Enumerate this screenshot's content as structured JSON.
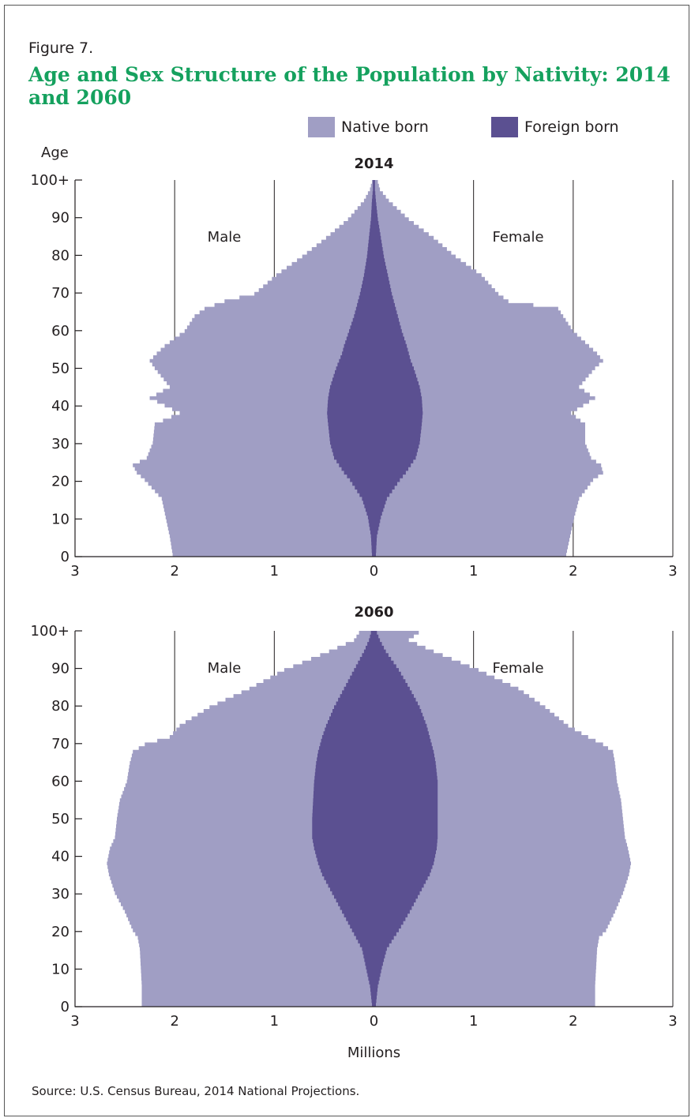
{
  "figure_label": "Figure 7.",
  "title": "Age and Sex Structure of the Population by Nativity: 2014 and 2060",
  "source": "Source: U.S. Census Bureau, 2014 National Projections.",
  "colors": {
    "native": "#a09ec4",
    "foreign": "#5b5091",
    "title": "#15a15e",
    "axis": "#231f20"
  },
  "chart_data": {
    "type": "population-pyramid",
    "legend": [
      {
        "name": "Native born",
        "color": "#a09ec4"
      },
      {
        "name": "Foreign born",
        "color": "#5b5091"
      }
    ],
    "y_axis_title": "Age",
    "x_label": "Millions",
    "x_ticks": [
      "3",
      "2",
      "1",
      "0",
      "1",
      "2",
      "3"
    ],
    "y_ticks": [
      "0",
      "10",
      "20",
      "30",
      "40",
      "50",
      "60",
      "70",
      "80",
      "90",
      "100+"
    ],
    "male_label": "Male",
    "female_label": "Female",
    "xlim": [
      -3,
      3
    ],
    "ylim": [
      0,
      100
    ],
    "panels": [
      {
        "title": "2014",
        "ages": [
          0,
          5,
          10,
          15,
          20,
          22,
          24,
          26,
          30,
          35,
          38,
          42,
          45,
          50,
          52,
          54,
          56,
          60,
          64,
          66,
          68,
          70,
          75,
          80,
          85,
          90,
          95,
          98,
          100
        ],
        "male_total": [
          2.02,
          2.05,
          2.09,
          2.13,
          2.3,
          2.38,
          2.42,
          2.28,
          2.22,
          2.2,
          1.95,
          2.25,
          2.05,
          2.2,
          2.25,
          2.18,
          2.1,
          1.9,
          1.8,
          1.7,
          1.5,
          1.2,
          0.98,
          0.72,
          0.48,
          0.26,
          0.1,
          0.04,
          0.02
        ],
        "male_foreign": [
          0.02,
          0.03,
          0.06,
          0.12,
          0.24,
          0.3,
          0.35,
          0.4,
          0.44,
          0.46,
          0.47,
          0.46,
          0.44,
          0.38,
          0.35,
          0.32,
          0.3,
          0.25,
          0.2,
          0.18,
          0.16,
          0.14,
          0.1,
          0.07,
          0.05,
          0.03,
          0.02,
          0.01,
          0.01
        ],
        "female_total": [
          1.93,
          1.97,
          2.01,
          2.06,
          2.2,
          2.3,
          2.28,
          2.18,
          2.12,
          2.12,
          1.98,
          2.22,
          2.06,
          2.22,
          2.3,
          2.24,
          2.16,
          2.0,
          1.9,
          1.85,
          1.35,
          1.25,
          1.08,
          0.82,
          0.6,
          0.35,
          0.15,
          0.06,
          0.04
        ],
        "female_foreign": [
          0.02,
          0.03,
          0.07,
          0.13,
          0.26,
          0.32,
          0.37,
          0.42,
          0.46,
          0.48,
          0.49,
          0.48,
          0.46,
          0.4,
          0.37,
          0.35,
          0.33,
          0.28,
          0.24,
          0.22,
          0.2,
          0.18,
          0.14,
          0.1,
          0.07,
          0.04,
          0.02,
          0.01,
          0.01
        ]
      },
      {
        "title": "2060",
        "ages": [
          0,
          5,
          10,
          15,
          18,
          20,
          25,
          30,
          35,
          38,
          42,
          45,
          50,
          55,
          60,
          65,
          68,
          70,
          72,
          75,
          80,
          85,
          90,
          95,
          98,
          100
        ],
        "male_total": [
          2.33,
          2.33,
          2.34,
          2.35,
          2.37,
          2.42,
          2.5,
          2.6,
          2.66,
          2.68,
          2.65,
          2.6,
          2.58,
          2.55,
          2.48,
          2.45,
          2.42,
          2.3,
          2.05,
          1.95,
          1.65,
          1.25,
          0.9,
          0.45,
          0.2,
          0.15
        ],
        "male_foreign": [
          0.02,
          0.04,
          0.08,
          0.12,
          0.18,
          0.22,
          0.32,
          0.42,
          0.52,
          0.56,
          0.6,
          0.62,
          0.62,
          0.61,
          0.6,
          0.58,
          0.56,
          0.54,
          0.52,
          0.48,
          0.4,
          0.3,
          0.2,
          0.1,
          0.05,
          0.03
        ],
        "female_total": [
          2.22,
          2.22,
          2.23,
          2.24,
          2.26,
          2.33,
          2.42,
          2.5,
          2.56,
          2.58,
          2.55,
          2.52,
          2.5,
          2.48,
          2.44,
          2.42,
          2.4,
          2.3,
          2.15,
          1.95,
          1.72,
          1.45,
          1.05,
          0.6,
          0.35,
          0.45
        ],
        "female_foreign": [
          0.02,
          0.04,
          0.08,
          0.13,
          0.2,
          0.25,
          0.36,
          0.46,
          0.56,
          0.6,
          0.63,
          0.64,
          0.64,
          0.64,
          0.64,
          0.62,
          0.6,
          0.58,
          0.56,
          0.53,
          0.46,
          0.36,
          0.25,
          0.12,
          0.06,
          0.03
        ]
      }
    ]
  }
}
